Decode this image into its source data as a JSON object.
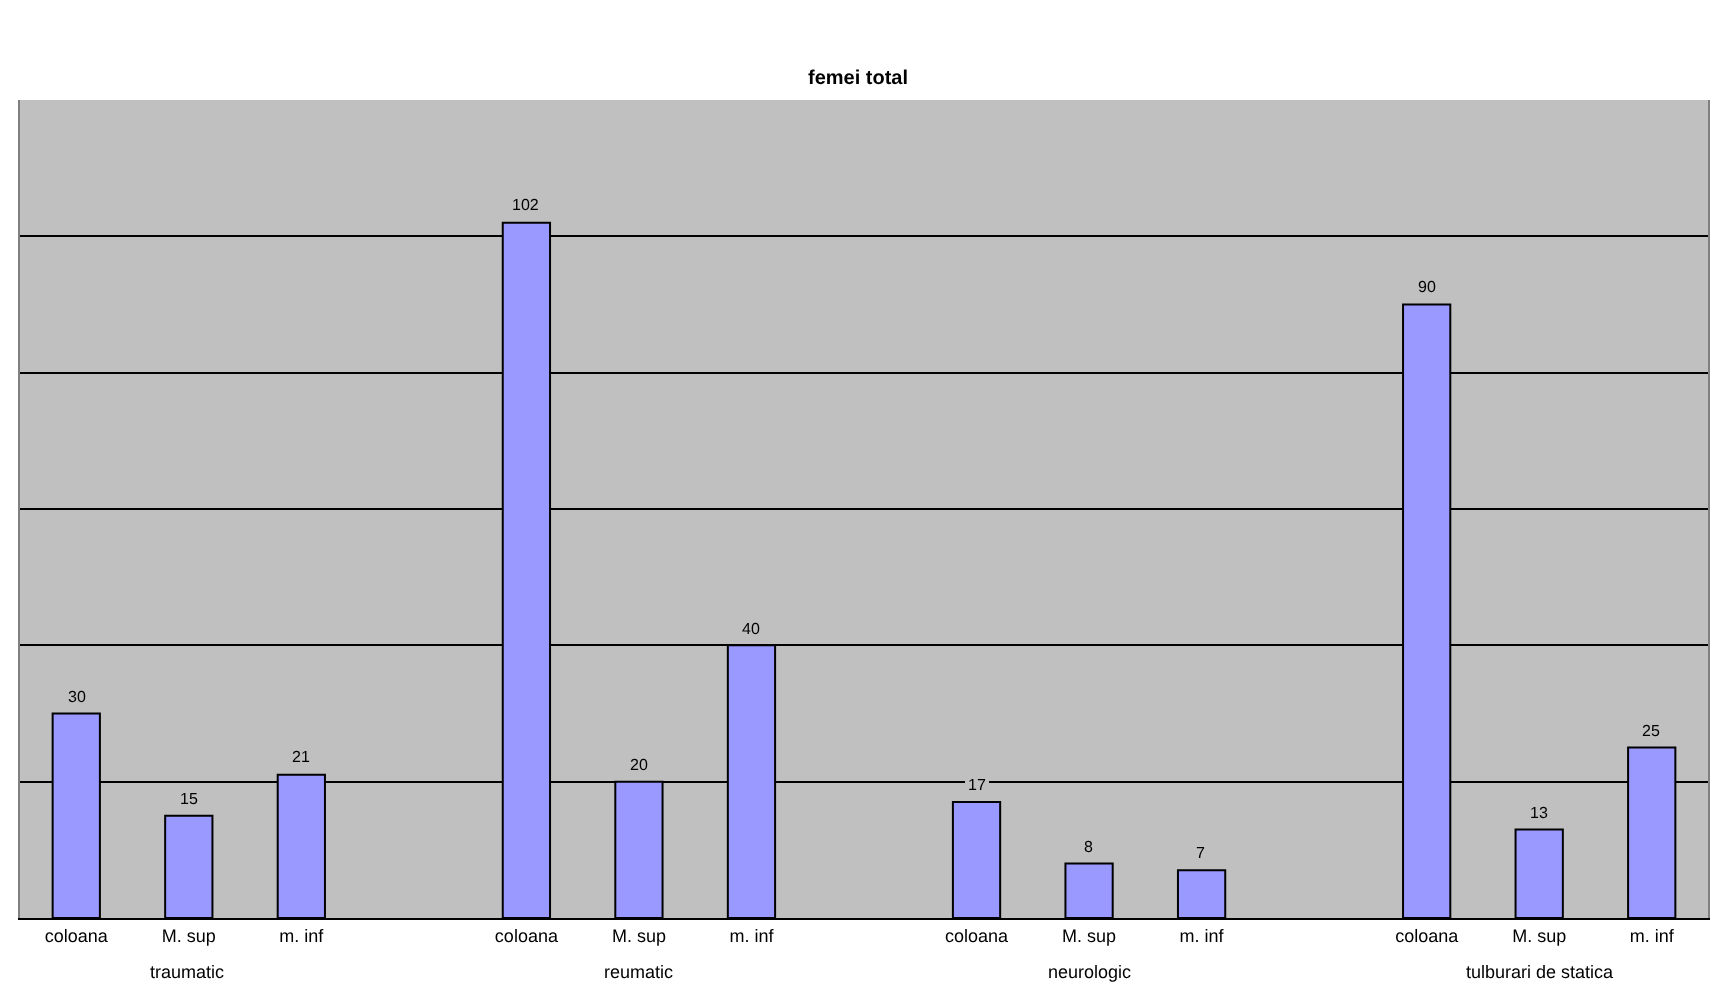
{
  "chart_data": {
    "type": "bar",
    "title": "femei total",
    "categories": [
      "coloana",
      "M. sup",
      "m. inf",
      null,
      "coloana",
      "M. sup",
      "m. inf",
      null,
      "coloana",
      "M. sup",
      "m. inf",
      null,
      "coloana",
      "M. sup",
      "m. inf"
    ],
    "values": [
      30,
      15,
      21,
      null,
      102,
      20,
      40,
      null,
      17,
      8,
      7,
      null,
      90,
      13,
      25
    ],
    "color": "#9999ff",
    "ylim": [
      0,
      120
    ],
    "yticks": [
      {
        "value": 0,
        "label": null
      },
      {
        "value": 20,
        "label": null
      },
      {
        "value": 40,
        "label": null
      },
      {
        "value": 60,
        "label": null
      },
      {
        "value": 80,
        "label": null
      },
      {
        "value": 100,
        "label": null
      },
      {
        "value": 120,
        "label": null
      }
    ],
    "grid": "y",
    "tick_labels": "x",
    "data_labels": true,
    "annotations": [
      "traumatic",
      "reumatic",
      "neurologic",
      "tulburari de statica"
    ]
  }
}
